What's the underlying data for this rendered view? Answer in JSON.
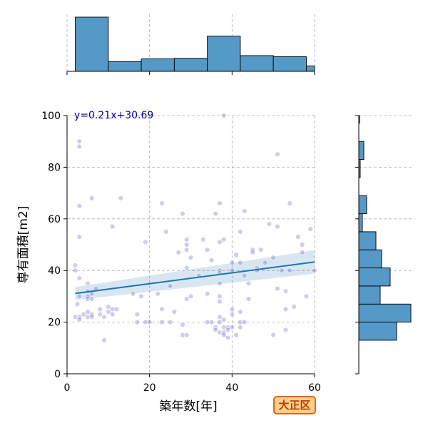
{
  "chart_data": {
    "type": "scatter",
    "xlabel": "築年数[年]",
    "ylabel": "専有面積[m2]",
    "xlim": [
      0,
      60
    ],
    "ylim": [
      0,
      100
    ],
    "x_ticks": [
      "0",
      "20",
      "40",
      "60"
    ],
    "y_ticks": [
      "0",
      "20",
      "40",
      "60",
      "80",
      "100"
    ],
    "grid": true,
    "regression_label": "y=0.21x+30.69",
    "regression": {
      "slope": 0.21,
      "intercept": 30.69
    },
    "colors": {
      "points": "#3b3bb5",
      "line": "#1f77b4",
      "bars": "#5499c7",
      "badge_fill": "#ffd08a",
      "badge_border": "#e8601c",
      "label_text": "#0000aa"
    },
    "badge": "大正区",
    "points": [
      [
        2,
        42
      ],
      [
        2,
        40
      ],
      [
        2,
        22
      ],
      [
        2.5,
        27
      ],
      [
        3,
        90
      ],
      [
        3,
        88
      ],
      [
        3,
        65
      ],
      [
        3,
        53
      ],
      [
        3,
        37
      ],
      [
        3,
        30
      ],
      [
        3,
        22
      ],
      [
        3,
        21
      ],
      [
        4,
        23
      ],
      [
        5,
        35
      ],
      [
        5,
        32
      ],
      [
        5,
        30
      ],
      [
        5,
        29
      ],
      [
        5,
        24
      ],
      [
        5,
        22
      ],
      [
        6,
        68
      ],
      [
        6,
        31
      ],
      [
        6,
        29
      ],
      [
        6,
        23
      ],
      [
        6,
        22
      ],
      [
        7,
        33
      ],
      [
        8,
        25
      ],
      [
        8,
        23
      ],
      [
        9,
        22
      ],
      [
        9,
        13
      ],
      [
        10,
        26
      ],
      [
        10,
        24
      ],
      [
        11,
        57
      ],
      [
        11,
        25
      ],
      [
        11,
        23
      ],
      [
        12,
        25
      ],
      [
        13,
        68
      ],
      [
        16,
        31
      ],
      [
        17,
        23
      ],
      [
        17,
        20
      ],
      [
        18,
        30
      ],
      [
        19,
        51
      ],
      [
        19,
        20
      ],
      [
        20,
        20
      ],
      [
        22,
        31
      ],
      [
        23,
        66
      ],
      [
        23,
        25
      ],
      [
        23,
        20
      ],
      [
        24,
        55
      ],
      [
        25,
        34
      ],
      [
        25,
        20
      ],
      [
        26,
        24
      ],
      [
        27,
        47
      ],
      [
        28,
        62
      ],
      [
        28,
        19
      ],
      [
        28,
        15
      ],
      [
        29,
        52
      ],
      [
        29,
        50
      ],
      [
        29,
        48
      ],
      [
        29,
        41
      ],
      [
        29,
        29
      ],
      [
        29,
        15
      ],
      [
        30,
        45
      ],
      [
        30,
        30
      ],
      [
        32,
        38
      ],
      [
        33,
        52
      ],
      [
        34,
        48
      ],
      [
        34,
        31
      ],
      [
        34,
        20
      ],
      [
        35,
        44
      ],
      [
        35,
        20
      ],
      [
        36,
        62
      ],
      [
        36,
        18
      ],
      [
        36,
        17
      ],
      [
        37,
        66
      ],
      [
        37,
        51
      ],
      [
        37,
        40
      ],
      [
        37,
        39
      ],
      [
        37,
        35
      ],
      [
        37,
        30
      ],
      [
        37,
        28
      ],
      [
        37,
        22
      ],
      [
        37,
        20
      ],
      [
        37,
        16
      ],
      [
        38,
        100
      ],
      [
        38,
        52
      ],
      [
        38,
        21
      ],
      [
        38,
        18
      ],
      [
        38,
        16
      ],
      [
        38,
        15
      ],
      [
        39,
        18
      ],
      [
        39,
        17
      ],
      [
        39,
        14
      ],
      [
        40,
        43
      ],
      [
        40,
        40
      ],
      [
        40,
        25
      ],
      [
        40,
        23
      ],
      [
        40,
        18
      ],
      [
        41,
        46
      ],
      [
        41,
        15
      ],
      [
        42,
        55
      ],
      [
        42,
        43
      ],
      [
        42,
        24
      ],
      [
        42,
        20
      ],
      [
        42,
        18
      ],
      [
        43,
        63
      ],
      [
        43,
        38
      ],
      [
        43,
        20
      ],
      [
        44,
        35
      ],
      [
        44,
        29
      ],
      [
        45,
        48
      ],
      [
        45,
        47
      ],
      [
        46,
        41
      ],
      [
        46,
        40
      ],
      [
        47,
        48
      ],
      [
        48,
        43
      ],
      [
        49,
        58
      ],
      [
        50,
        45
      ],
      [
        50,
        15
      ],
      [
        51,
        85
      ],
      [
        51,
        57
      ],
      [
        51,
        33
      ],
      [
        52,
        40
      ],
      [
        53,
        32
      ],
      [
        53,
        25
      ],
      [
        53,
        17
      ],
      [
        54,
        66
      ],
      [
        54,
        40
      ],
      [
        55,
        26
      ],
      [
        56,
        53
      ],
      [
        57,
        50
      ],
      [
        57,
        47
      ],
      [
        58,
        30
      ],
      [
        59,
        56
      ],
      [
        60,
        40
      ]
    ],
    "x_hist": {
      "edges": [
        2,
        10,
        18,
        26,
        34,
        42,
        50,
        58,
        62
      ],
      "values": [
        100,
        18,
        23,
        24,
        65,
        29,
        27,
        10
      ]
    },
    "y_hist": {
      "edges": [
        13,
        20,
        27,
        34,
        41,
        48,
        55,
        62,
        69,
        76,
        83,
        90,
        97,
        104
      ],
      "values": [
        53,
        73,
        30,
        44,
        32,
        24,
        5,
        11,
        0,
        2,
        7,
        0,
        1
      ]
    }
  }
}
